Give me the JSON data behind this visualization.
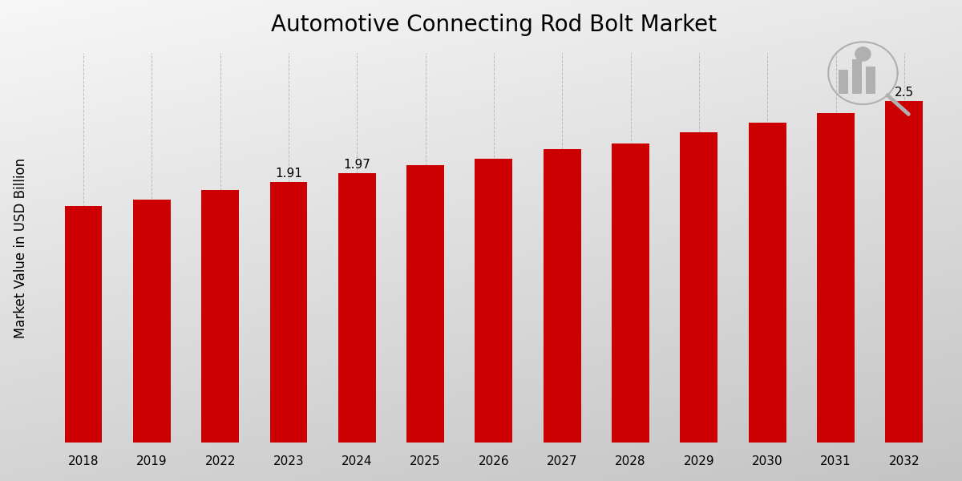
{
  "title": "Automotive Connecting Rod Bolt Market",
  "ylabel": "Market Value in USD Billion",
  "bar_color": "#CC0000",
  "grid_color": "#bbbbbb",
  "categories": [
    "2018",
    "2019",
    "2022",
    "2023",
    "2024",
    "2025",
    "2026",
    "2027",
    "2028",
    "2029",
    "2030",
    "2031",
    "2032"
  ],
  "values": [
    1.73,
    1.78,
    1.85,
    1.91,
    1.97,
    2.03,
    2.08,
    2.15,
    2.19,
    2.27,
    2.34,
    2.41,
    2.5
  ],
  "labeled_bars": {
    "2023": "1.91",
    "2024": "1.97",
    "2032": "2.5"
  },
  "title_fontsize": 20,
  "label_fontsize": 11,
  "tick_fontsize": 11,
  "ylabel_fontsize": 12,
  "ylim": [
    0,
    2.85
  ],
  "bar_width": 0.55
}
